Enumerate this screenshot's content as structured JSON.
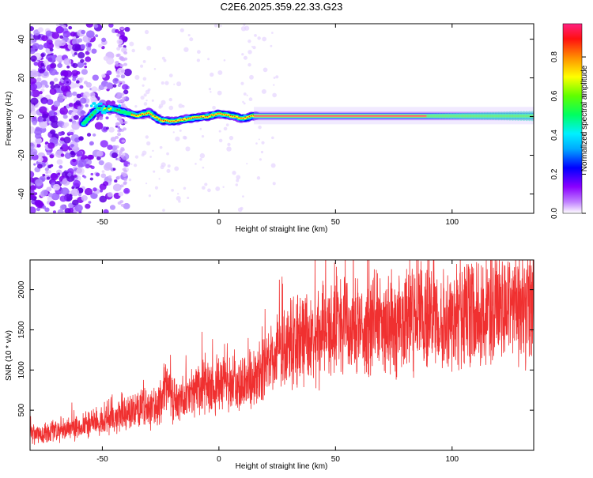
{
  "title": "C2E6.2025.359.22.33.G23",
  "chart_data": [
    {
      "type": "heatmap",
      "title": "C2E6.2025.359.22.33.G23",
      "xlabel": "Height of straight line (km)",
      "ylabel": "Frequency (Hz)",
      "xlim": [
        -81,
        135
      ],
      "ylim": [
        -50,
        48
      ],
      "x_ticks": [
        -50,
        0,
        50,
        100
      ],
      "y_ticks": [
        -40,
        -20,
        0,
        20,
        40
      ],
      "x_tick_labels": [
        "-50",
        "0",
        "50",
        "100"
      ],
      "y_tick_labels": [
        "-40",
        "-20",
        "0",
        "20",
        "40"
      ],
      "colorbar": {
        "label": "Normalized spectral amplitude",
        "range": [
          0,
          0.97
        ],
        "ticks": [
          0.0,
          0.2,
          0.4,
          0.6,
          0.8
        ],
        "tick_labels": [
          "0.0",
          "0.2",
          "0.4",
          "0.6",
          "0.8"
        ],
        "colormap": [
          "#ffffff",
          "#8a00ff",
          "#0000ff",
          "#00e5ff",
          "#00ff00",
          "#ffff00",
          "#ff8800",
          "#ff0000",
          "#ff2080"
        ]
      },
      "signal_track": [
        {
          "x": -58,
          "f": -3.5
        },
        {
          "x": -52,
          "f": 4
        },
        {
          "x": -45,
          "f": 4
        },
        {
          "x": -40,
          "f": 2
        },
        {
          "x": -35,
          "f": 0.5
        },
        {
          "x": -30,
          "f": 2
        },
        {
          "x": -25,
          "f": -2
        },
        {
          "x": -20,
          "f": -2.5
        },
        {
          "x": -15,
          "f": -1.5
        },
        {
          "x": -10,
          "f": -0.5
        },
        {
          "x": -5,
          "f": 0
        },
        {
          "x": 0,
          "f": 1.5
        },
        {
          "x": 5,
          "f": 0.5
        },
        {
          "x": 10,
          "f": -1
        },
        {
          "x": 15,
          "f": 0.5
        },
        {
          "x": 135,
          "f": 0.3
        }
      ]
    },
    {
      "type": "line",
      "xlabel": "Height of straight line (km)",
      "ylabel": "SNR (10 * v/v)",
      "xlim": [
        -81,
        135
      ],
      "ylim": [
        0,
        2370
      ],
      "x_ticks": [
        -50,
        0,
        50,
        100
      ],
      "y_ticks": [
        500,
        1000,
        1500,
        2000
      ],
      "x_tick_labels": [
        "-50",
        "0",
        "50",
        "100"
      ],
      "y_tick_labels": [
        "500",
        "1000",
        "1500",
        "2000"
      ],
      "series": [
        {
          "name": "SNR",
          "color": "#f03030",
          "x": [
            -81,
            -75,
            -70,
            -65,
            -60,
            -55,
            -50,
            -45,
            -40,
            -35,
            -30,
            -25,
            -22,
            -20,
            -15,
            -10,
            -5,
            0,
            5,
            10,
            15,
            20,
            25,
            30,
            35,
            40,
            45,
            50,
            60,
            70,
            80,
            90,
            100,
            110,
            120,
            130,
            135
          ],
          "y": [
            200,
            200,
            240,
            260,
            300,
            330,
            380,
            400,
            470,
            500,
            520,
            550,
            900,
            600,
            620,
            720,
            780,
            800,
            780,
            850,
            900,
            1000,
            1200,
            1300,
            1350,
            1400,
            1450,
            1480,
            1520,
            1560,
            1600,
            1640,
            1680,
            1700,
            1800,
            1840,
            1900
          ]
        }
      ]
    }
  ]
}
